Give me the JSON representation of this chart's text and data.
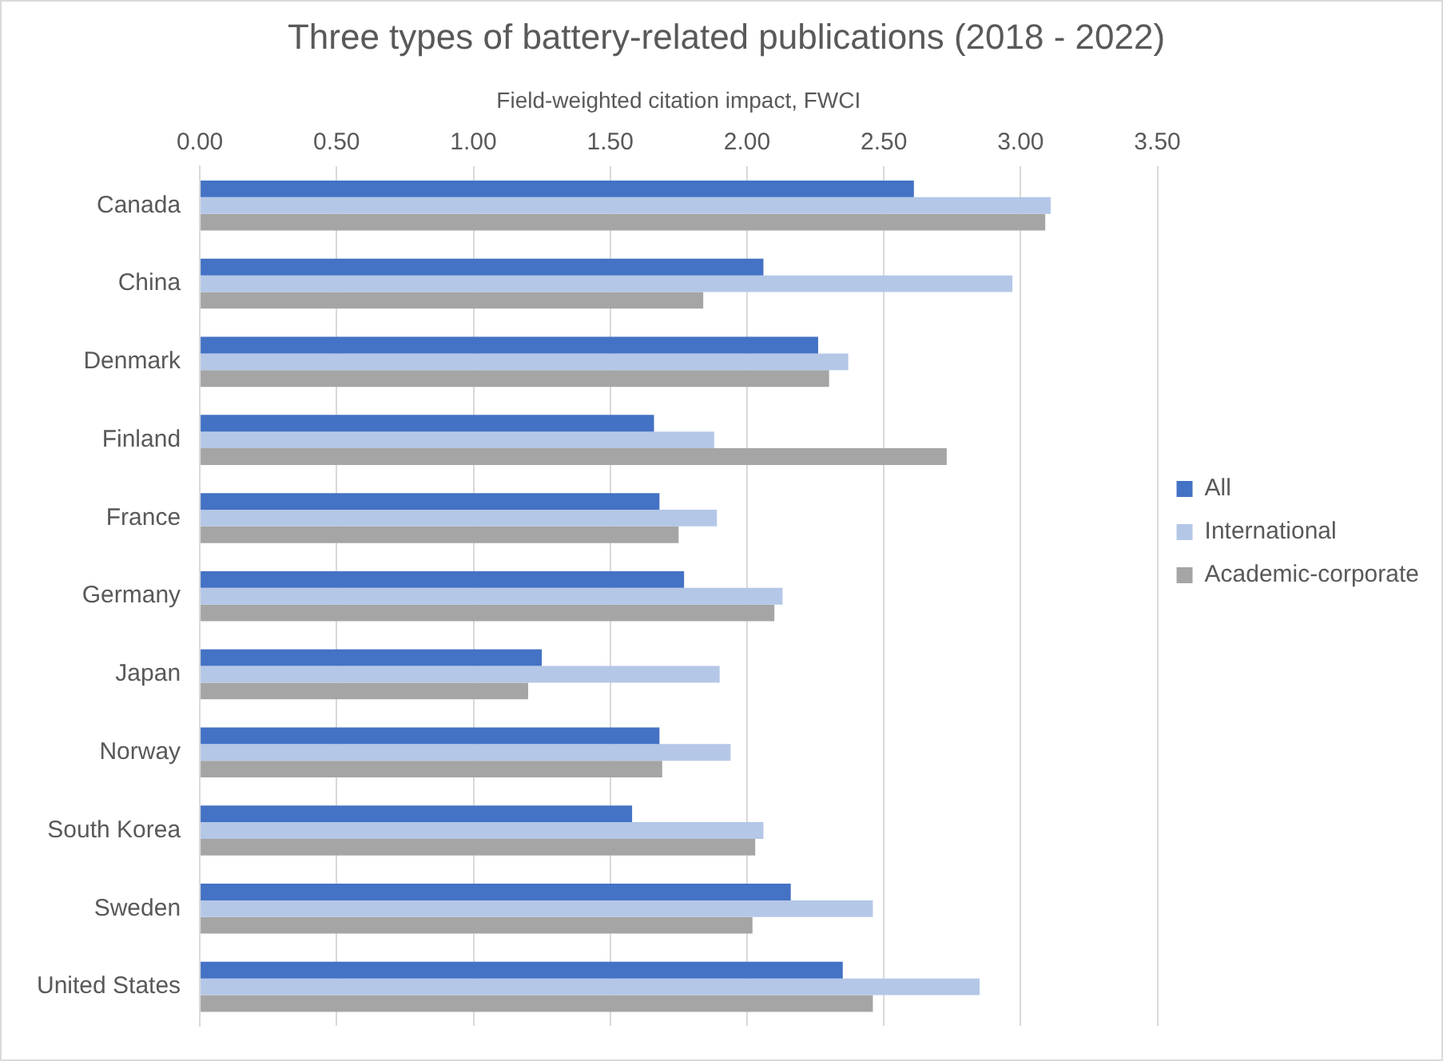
{
  "chart_data": {
    "type": "bar",
    "orientation": "horizontal",
    "title": "Three types of battery-related publications (2018 - 2022)",
    "xlabel": "Field-weighted citation impact, FWCI",
    "categories": [
      "Canada",
      "China",
      "Denmark",
      "Finland",
      "France",
      "Germany",
      "Japan",
      "Norway",
      "South Korea",
      "Sweden",
      "United States"
    ],
    "series": [
      {
        "name": "All",
        "color": "#4472c4",
        "values": [
          2.61,
          2.06,
          2.26,
          1.66,
          1.68,
          1.77,
          1.25,
          1.68,
          1.58,
          2.16,
          2.35
        ]
      },
      {
        "name": "International",
        "color": "#b4c7e7",
        "values": [
          3.11,
          2.97,
          2.37,
          1.88,
          1.89,
          2.13,
          1.9,
          1.94,
          2.06,
          2.46,
          2.85
        ]
      },
      {
        "name": "Academic-corporate",
        "color": "#a5a5a5",
        "values": [
          3.09,
          1.84,
          2.3,
          2.73,
          1.75,
          2.1,
          1.2,
          1.69,
          2.03,
          2.02,
          2.46
        ]
      }
    ],
    "xlim": [
      0,
      3.5
    ],
    "xticks": [
      {
        "value": 0,
        "label": "0.00"
      },
      {
        "value": 0.5,
        "label": "0.50"
      },
      {
        "value": 1,
        "label": "1.00"
      },
      {
        "value": 1.5,
        "label": "1.50"
      },
      {
        "value": 2,
        "label": "2.00"
      },
      {
        "value": 2.5,
        "label": "2.50"
      },
      {
        "value": 3,
        "label": "3.00"
      },
      {
        "value": 3.5,
        "label": "3.50"
      }
    ],
    "grid": "x",
    "legend": "right"
  }
}
